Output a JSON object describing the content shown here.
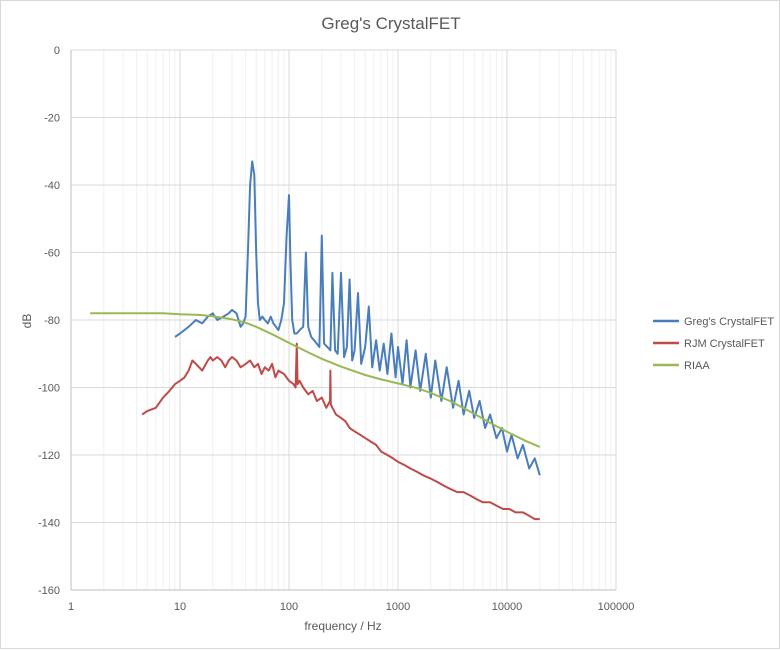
{
  "chart_data": {
    "type": "line",
    "title": "Greg's CrystalFET",
    "xlabel": "frequency / Hz",
    "ylabel": "dB",
    "x_scale": "log",
    "xlim": [
      1,
      100000
    ],
    "ylim": [
      -160,
      0
    ],
    "x_ticks": [
      1,
      10,
      100,
      1000,
      10000,
      100000
    ],
    "x_tick_labels": [
      "1",
      "10",
      "100",
      "1000",
      "10000",
      "100000"
    ],
    "y_ticks": [
      0,
      -20,
      -40,
      -60,
      -80,
      -100,
      -120,
      -140,
      -160
    ],
    "y_tick_labels": [
      "0",
      "-20",
      "-40",
      "-60",
      "-80",
      "-100",
      "-120",
      "-140",
      "-160"
    ],
    "grid": "major and minor vertical, major horizontal",
    "legend_position": "right",
    "series": [
      {
        "name": "Greg's CrystalFET",
        "color": "#4a7ebb",
        "x": [
          9,
          10,
          12,
          14,
          16,
          18,
          20,
          22,
          25,
          28,
          30,
          33,
          36,
          38,
          40,
          42,
          44,
          46,
          48,
          50,
          52,
          54,
          57,
          60,
          64,
          68,
          72,
          76,
          80,
          85,
          90,
          95,
          100,
          103,
          107,
          112,
          118,
          125,
          135,
          143,
          150,
          160,
          170,
          180,
          190,
          200,
          210,
          225,
          240,
          250,
          265,
          280,
          300,
          320,
          340,
          360,
          380,
          400,
          430,
          460,
          500,
          540,
          580,
          630,
          680,
          740,
          800,
          870,
          950,
          1000,
          1100,
          1200,
          1300,
          1450,
          1600,
          1800,
          2000,
          2200,
          2500,
          2800,
          3200,
          3600,
          4000,
          4500,
          5000,
          5600,
          6300,
          7000,
          8000,
          9000,
          10000,
          11000,
          12500,
          14000,
          16000,
          18000,
          20000
        ],
        "y": [
          -85,
          -84,
          -82,
          -80,
          -81,
          -79,
          -78,
          -80,
          -79,
          -78,
          -77,
          -78,
          -82,
          -81,
          -79,
          -60,
          -40,
          -33,
          -37,
          -60,
          -75,
          -80,
          -79,
          -80,
          -81,
          -79,
          -81,
          -82,
          -83,
          -80,
          -75,
          -55,
          -43,
          -62,
          -80,
          -84,
          -84,
          -83,
          -82,
          -60,
          -82,
          -85,
          -86,
          -87,
          -88,
          -55,
          -87,
          -88,
          -89,
          -66,
          -89,
          -90,
          -66,
          -91,
          -88,
          -68,
          -92,
          -89,
          -72,
          -93,
          -88,
          -76,
          -94,
          -86,
          -95,
          -87,
          -96,
          -84,
          -97,
          -88,
          -99,
          -86,
          -100,
          -89,
          -101,
          -90,
          -103,
          -92,
          -104,
          -94,
          -106,
          -98,
          -108,
          -101,
          -109,
          -104,
          -112,
          -108,
          -115,
          -112,
          -119,
          -114,
          -121,
          -117,
          -124,
          -121,
          -126
        ]
      },
      {
        "name": "RJM CrystalFET",
        "color": "#be4b48",
        "x": [
          4.5,
          5,
          6,
          7,
          8,
          9,
          10,
          11,
          12,
          13,
          14,
          15,
          16,
          18,
          19,
          20,
          22,
          24,
          26,
          28,
          30,
          33,
          36,
          40,
          44,
          48,
          52,
          56,
          60,
          65,
          70,
          75,
          80,
          90,
          100,
          110,
          115,
          118,
          120,
          125,
          135,
          150,
          165,
          180,
          200,
          220,
          238,
          240,
          242,
          250,
          270,
          300,
          330,
          360,
          400,
          450,
          500,
          560,
          630,
          700,
          800,
          900,
          1000,
          1150,
          1300,
          1500,
          1700,
          2000,
          2300,
          2600,
          3000,
          3500,
          4000,
          4600,
          5200,
          6000,
          7000,
          8000,
          9200,
          10500,
          12000,
          14000,
          16000,
          18000,
          20000
        ],
        "y": [
          -108,
          -107,
          -106,
          -103,
          -101,
          -99,
          -98,
          -97,
          -95,
          -92,
          -93,
          -94,
          -95,
          -92,
          -91,
          -92,
          -91,
          -92,
          -94,
          -92,
          -91,
          -92,
          -94,
          -93,
          -92,
          -94,
          -93,
          -96,
          -94,
          -95,
          -93,
          -97,
          -95,
          -96,
          -98,
          -99,
          -100,
          -87,
          -99,
          -98,
          -100,
          -102,
          -101,
          -104,
          -103,
          -106,
          -104,
          -95,
          -105,
          -106,
          -108,
          -109,
          -110,
          -112,
          -113,
          -114,
          -115,
          -116,
          -117,
          -119,
          -120,
          -121,
          -122,
          -123,
          -124,
          -125,
          -126,
          -127,
          -128,
          -129,
          -130,
          -131,
          -131,
          -132,
          -133,
          -134,
          -134,
          -135,
          -136,
          -136,
          -137,
          -137,
          -138,
          -139,
          -139
        ]
      },
      {
        "name": "RIAA",
        "color": "#98b954",
        "x": [
          1.5,
          2,
          3,
          5,
          7,
          10,
          15,
          20,
          30,
          40,
          50,
          70,
          100,
          150,
          200,
          300,
          500,
          700,
          1000,
          1500,
          2000,
          3000,
          5000,
          7000,
          10000,
          15000,
          20000
        ],
        "y": [
          -78,
          -78,
          -78,
          -78,
          -78,
          -78.3,
          -78.5,
          -78.9,
          -79.8,
          -80.8,
          -82,
          -84.2,
          -86.8,
          -89.6,
          -91.5,
          -93.8,
          -96.3,
          -97.6,
          -98.8,
          -100.2,
          -101.6,
          -104,
          -107.8,
          -110.5,
          -113.1,
          -115.9,
          -117.6
        ]
      }
    ]
  }
}
